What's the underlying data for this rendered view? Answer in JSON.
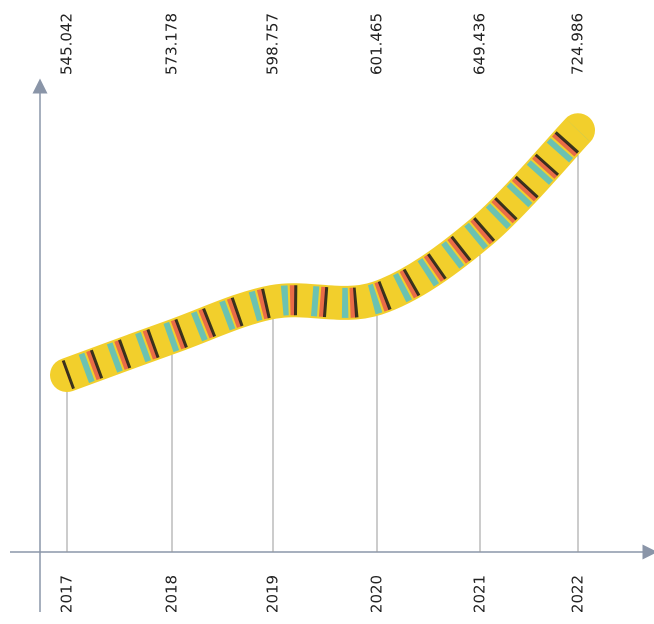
{
  "chart_data": {
    "type": "line",
    "categories": [
      "2017",
      "2018",
      "2019",
      "2020",
      "2021",
      "2022"
    ],
    "values": [
      545.042,
      573.178,
      598.757,
      601.465,
      649.436,
      724.986
    ],
    "color": "#f2cf2c",
    "ylim": [
      415,
      756
    ]
  }
}
